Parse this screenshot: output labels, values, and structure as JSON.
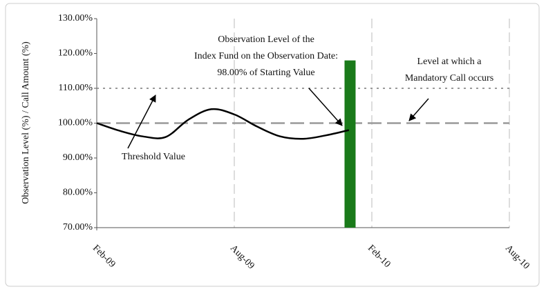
{
  "chart_data": {
    "type": "line",
    "y_label": "Observation Level (%) / Call Amount (%)",
    "x": [
      0,
      1,
      2,
      3,
      4,
      5,
      6,
      7,
      8,
      9,
      10,
      11
    ],
    "series": [
      {
        "color": "#000000",
        "values": [
          100,
          97.8,
          96.2,
          96,
          101,
          104,
          102.5,
          99,
          96.2,
          95.5,
          96.5,
          98
        ]
      }
    ],
    "observation_bar": {
      "x": 11.05,
      "value": 118,
      "color": "#1a7a1a"
    },
    "reference_lines": [
      {
        "value": 100,
        "style": "dashed",
        "color": "#999999"
      },
      {
        "value": 110,
        "style": "dotted",
        "color": "#999999"
      }
    ],
    "xlim": [
      0,
      18
    ],
    "xticks": [
      {
        "value": 0,
        "label": "Feb-09"
      },
      {
        "value": 6,
        "label": "Aug-09"
      },
      {
        "value": 12,
        "label": "Feb-10"
      },
      {
        "value": 18,
        "label": "Aug-10"
      }
    ],
    "ylim": [
      70,
      130
    ],
    "yticks": [
      {
        "value": 70,
        "label": "70.00%"
      },
      {
        "value": 80,
        "label": "80.00%"
      },
      {
        "value": 90,
        "label": "90.00%"
      },
      {
        "value": 100,
        "label": "100.00%"
      },
      {
        "value": 110,
        "label": "110.00%"
      },
      {
        "value": 120,
        "label": "120.00%"
      },
      {
        "value": 130,
        "label": "130.00%"
      }
    ],
    "annotations": [
      {
        "lines": [
          "Threshold Value"
        ]
      },
      {
        "lines": [
          "Observation Level of the",
          "Index Fund on the Observation Date:",
          "98.00% of Starting Value"
        ]
      },
      {
        "lines": [
          "Level at which a",
          "Mandatory Call occurs"
        ]
      }
    ]
  }
}
